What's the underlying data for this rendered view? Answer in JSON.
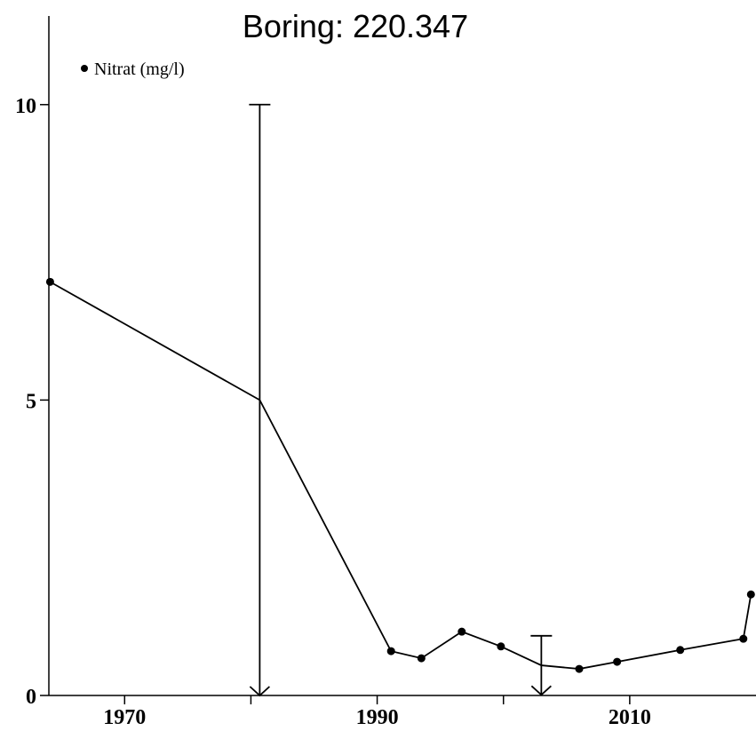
{
  "chart_data": {
    "type": "line",
    "title": "Boring: 220.347",
    "x": [
      1964.1,
      1980.7,
      1991.1,
      1993.5,
      1996.7,
      1999.8,
      2003.0,
      2006.0,
      2009.0,
      2014.0,
      2019.0,
      2019.6
    ],
    "series": [
      {
        "name": "Nitrat (mg/l)",
        "color": "#000000",
        "values": [
          7.0,
          5.0,
          0.75,
          0.63,
          1.08,
          0.83,
          0.51,
          0.45,
          0.57,
          0.77,
          0.96,
          1.71
        ],
        "errors": [
          null,
          5.0,
          null,
          null,
          null,
          null,
          0.5,
          null,
          null,
          null,
          null,
          null
        ]
      }
    ],
    "xlim": [
      1964,
      2020
    ],
    "xticks": [
      1970,
      1990,
      2010
    ],
    "minor_xticks": [
      1980,
      2000
    ],
    "ylim": [
      0,
      11.5
    ],
    "yticks": [
      0,
      5,
      10
    ],
    "legend": "top-left"
  }
}
